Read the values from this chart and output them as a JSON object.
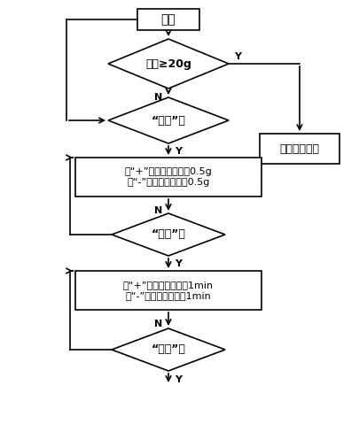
{
  "bg_color": "#ffffff",
  "box_color": "#ffffff",
  "border_color": "#000000",
  "text_color": "#000000",
  "title": "上电",
  "diamond1_text": "挂载≥20g",
  "diamond2_text": "“设置”键",
  "box1_line1": "按“+”键：空瓶质量加0.5g",
  "box1_line2": "按“-”键：空瓶质量减0.5g",
  "diamond3_text": "“设置”键",
  "box2_line1": "按“+”键：报警时间加1min",
  "box2_line2": "按“-”键：报警时间减1min",
  "diamond4_text": "“设置”键",
  "side_box_text": "进入工作状态",
  "Y_label": "Y",
  "N_label": "N",
  "figsize": [
    4.06,
    4.79
  ],
  "dpi": 100
}
